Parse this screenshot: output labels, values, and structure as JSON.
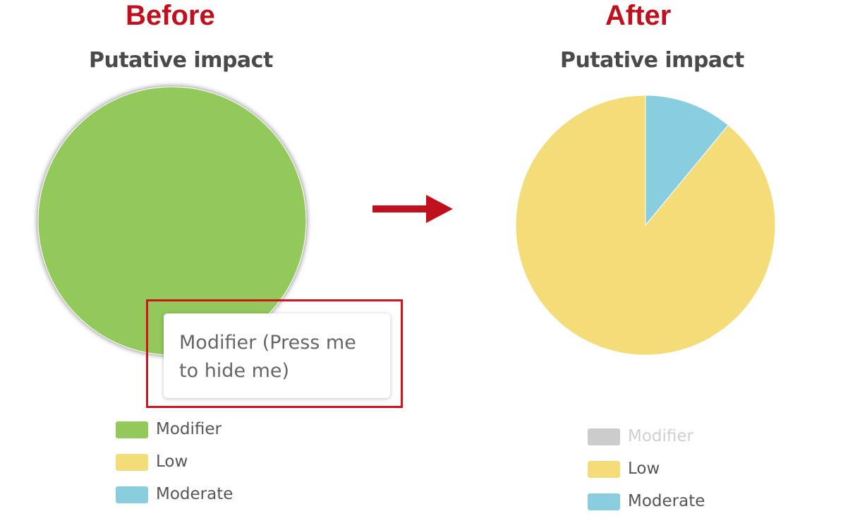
{
  "headings": {
    "before": "Before",
    "after": "After"
  },
  "tooltip": {
    "text": "Modifier (Press me to hide me)"
  },
  "colors": {
    "heading": "#c0101e",
    "highlight": "#d0141c",
    "hidden": "#cccccc"
  },
  "chart_data": [
    {
      "type": "pie",
      "title": "Putative impact",
      "categories": [
        "Modifier",
        "Low",
        "Moderate"
      ],
      "colors": [
        "#93c85a",
        "#f4dc78",
        "#88cede"
      ],
      "values": [
        1,
        0,
        0
      ],
      "hidden": [
        false,
        false,
        false
      ],
      "legend_placement": "bottom"
    },
    {
      "type": "pie",
      "title": "Putative impact",
      "categories": [
        "Modifier",
        "Low",
        "Moderate"
      ],
      "colors": [
        "#93c85a",
        "#f4dc78",
        "#88cede"
      ],
      "values": [
        0,
        0.89,
        0.11
      ],
      "hidden": [
        true,
        false,
        false
      ],
      "legend_placement": "bottom"
    }
  ]
}
